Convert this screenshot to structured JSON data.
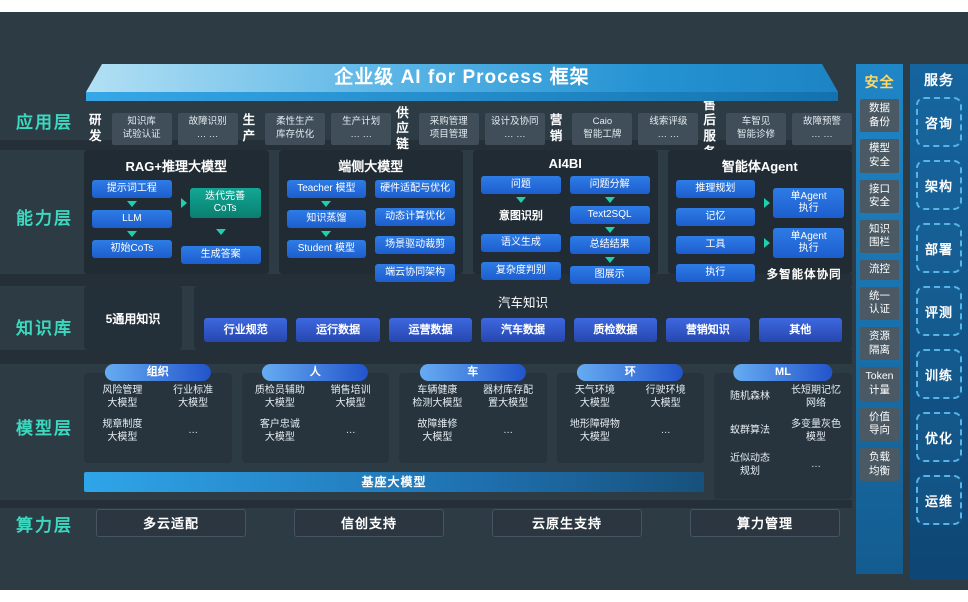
{
  "banner": {
    "title": "企业级 AI for Process 框架"
  },
  "left_labels": [
    "应用层",
    "能力层",
    "知识库",
    "模型层",
    "算力层"
  ],
  "app_layer": {
    "groups": [
      {
        "label": "研发",
        "chips": [
          "知识库\n试验认证",
          "故障识别\n… …"
        ]
      },
      {
        "label": "生产",
        "chips": [
          "柔性生产\n库存优化",
          "生产计划\n… …"
        ]
      },
      {
        "label": "供应\n链",
        "chips": [
          "采购管理\n项目管理",
          "设计及协同\n… …"
        ]
      },
      {
        "label": "营销",
        "chips": [
          "Caio\n智能工牌",
          "线索评级\n… …"
        ]
      },
      {
        "label": "售后\n服务",
        "chips": [
          "车智见\n智能诊修",
          "故障预警\n… …"
        ]
      }
    ]
  },
  "capability_layer": {
    "boxes": [
      {
        "title": "RAG+推理大模型",
        "cols": [
          [
            {
              "k": "chip",
              "t": "提示词工程"
            },
            {
              "k": "arrow"
            },
            {
              "k": "chip",
              "t": "LLM"
            },
            {
              "k": "arrow"
            },
            {
              "k": "chip",
              "t": "初始CoTs"
            }
          ],
          [
            {
              "k": "gap"
            },
            {
              "k": "achip-teal",
              "t": "迭代完善\nCoTs"
            },
            {
              "k": "gap"
            },
            {
              "k": "arrow"
            },
            {
              "k": "gap"
            },
            {
              "k": "chip",
              "t": "生成答案"
            }
          ]
        ]
      },
      {
        "title": "端侧大模型",
        "cols": [
          [
            {
              "k": "chip",
              "t": "Teacher 模型"
            },
            {
              "k": "arrow"
            },
            {
              "k": "chip",
              "t": "知识蒸馏"
            },
            {
              "k": "arrow"
            },
            {
              "k": "chip",
              "t": "Student 模型"
            }
          ],
          [
            {
              "k": "chip",
              "t": "硬件适配与优化"
            },
            {
              "k": "gap"
            },
            {
              "k": "chip",
              "t": "动态计算优化"
            },
            {
              "k": "gap"
            },
            {
              "k": "chip",
              "t": "场景驱动裁剪"
            },
            {
              "k": "gap"
            },
            {
              "k": "chip",
              "t": "端云协同架构"
            }
          ]
        ]
      },
      {
        "title": "AI4BI",
        "cols": [
          [
            {
              "k": "chip",
              "t": "问题"
            },
            {
              "k": "arrow"
            },
            {
              "k": "text",
              "t": "意图识别"
            },
            {
              "k": "gap"
            },
            {
              "k": "chip",
              "t": "语义生成"
            },
            {
              "k": "gap"
            },
            {
              "k": "chip",
              "t": "复杂度判别"
            }
          ],
          [
            {
              "k": "chip",
              "t": "问题分解"
            },
            {
              "k": "arrow"
            },
            {
              "k": "chip",
              "t": "Text2SQL"
            },
            {
              "k": "arrow"
            },
            {
              "k": "chip",
              "t": "总结结果"
            },
            {
              "k": "arrow"
            },
            {
              "k": "chip",
              "t": "图展示"
            }
          ]
        ]
      },
      {
        "title": "智能体Agent",
        "cols": [
          [
            {
              "k": "chip",
              "t": "推理规划"
            },
            {
              "k": "gap"
            },
            {
              "k": "chip",
              "t": "记忆"
            },
            {
              "k": "gap"
            },
            {
              "k": "chip",
              "t": "工具"
            },
            {
              "k": "gap"
            },
            {
              "k": "chip",
              "t": "执行"
            }
          ],
          [
            {
              "k": "gap"
            },
            {
              "k": "achip",
              "t": "单Agent\n执行"
            },
            {
              "k": "gap"
            },
            {
              "k": "achip",
              "t": "单Agent\n执行"
            },
            {
              "k": "note",
              "t": "多智能体协同"
            }
          ]
        ]
      }
    ]
  },
  "knowledge_layer": {
    "general": "5通用知识",
    "title": "汽车知识",
    "chips": [
      "行业规范",
      "运行数据",
      "运营数据",
      "汽车数据",
      "质检数据",
      "营销知识",
      "其他"
    ]
  },
  "model_layer": {
    "groups": [
      {
        "pill": "组织",
        "items": [
          "风险管理\n大模型",
          "行业标准\n大模型",
          "规章制度\n大模型",
          "…"
        ]
      },
      {
        "pill": "人",
        "items": [
          "质检员辅助\n大模型",
          "销售培训\n大模型",
          "客户忠诚\n大模型",
          "…"
        ]
      },
      {
        "pill": "车",
        "items": [
          "车辆健康\n检测大模型",
          "器材库存配\n置大模型",
          "故障维修\n大模型",
          "…"
        ]
      },
      {
        "pill": "环",
        "items": [
          "天气环境\n大模型",
          "行驶环境\n大模型",
          "地形障碍物\n大模型",
          "…"
        ]
      },
      {
        "pill": "ML",
        "items": [
          "随机森林",
          "长短期记忆\n网络",
          "蚁群算法",
          "多变量灰色\n模型",
          "近似动态\n规划",
          "…"
        ]
      }
    ],
    "base_bar": "基座大模型"
  },
  "compute_layer": {
    "chips": [
      "多云适配",
      "信创支持",
      "云原生支持",
      "算力管理"
    ]
  },
  "security_column": {
    "header": "安全",
    "items": [
      "数据\n备份",
      "模型\n安全",
      "接口\n安全",
      "知识\n围栏",
      "流控",
      "统一\n认证",
      "资源\n隔离",
      "Token\n计量",
      "价值\n导向",
      "负载\n均衡"
    ]
  },
  "service_column": {
    "header": "服务",
    "items": [
      "咨询",
      "架构",
      "部署",
      "评测",
      "训练",
      "优化",
      "运维"
    ]
  },
  "colors": {
    "accent_teal": "#3bd9bf",
    "chip_blue": "#2273e0",
    "chip_teal": "#0ba08e",
    "banner_blue": "#2796d6",
    "canvas": "#2d3b45"
  }
}
